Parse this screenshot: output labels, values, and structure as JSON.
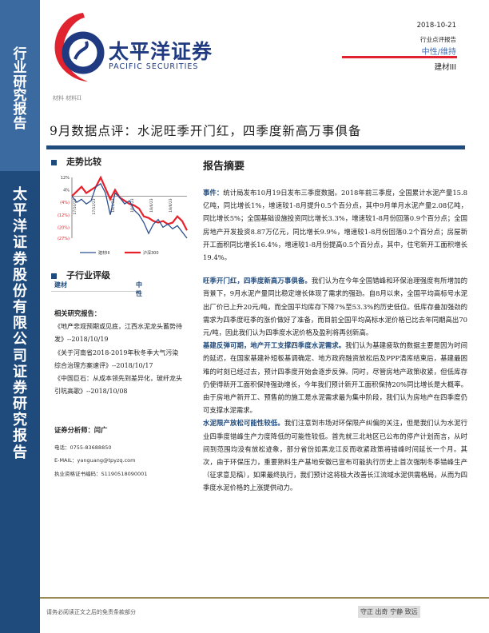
{
  "sidebar": {
    "top": "行业研究报告",
    "bottom": "太平洋证券股份有限公司证券研究报告"
  },
  "brand": {
    "cn": "太平洋证券",
    "en": "PACIFIC SECURITIES",
    "colors": {
      "red": "#e0232e",
      "blue": "#1f3a80"
    }
  },
  "header": {
    "date": "2018-10-21",
    "type": "行业点评报告",
    "rating": "中性/维持",
    "sector": "建材III",
    "category": "材料 材料II"
  },
  "title": "9月数据点评：水泥旺季开门红，四季度新高万事俱备",
  "trend": {
    "heading": "走势比较"
  },
  "chart_data": {
    "type": "line",
    "x": [
      "17/10/23",
      "17/11/6",
      "17/11/20",
      "17/12/4",
      "17/12/23",
      "18/1/8",
      "18/1/22",
      "18/2/5",
      "18/2/23",
      "18/3/9",
      "18/3/23",
      "18/4/9",
      "18/4/23",
      "18/5/7",
      "18/5/21",
      "18/6/4",
      "18/6/23",
      "18/7/9",
      "18/7/23",
      "18/8/6",
      "18/8/23",
      "18/9/7",
      "18/9/21",
      "18/10/8",
      "18/10/19"
    ],
    "xticks": [
      "17/10/23",
      "17/12/23",
      "18/2/23",
      "18/4/23",
      "18/6/23",
      "18/8/23"
    ],
    "yticks": [
      "12%",
      "4%",
      "(4%)",
      "(12%)",
      "(20%)",
      "(27%)"
    ],
    "ylim": [
      -27,
      12
    ],
    "series": [
      {
        "name": "建材III",
        "color": "#2b4f8f",
        "values": [
          0,
          -4,
          -2,
          -5,
          -3,
          6,
          8,
          2,
          -12,
          2,
          -1,
          -5,
          -3,
          -9,
          -12,
          -17,
          -24,
          -18,
          -15,
          -20,
          -18,
          -21,
          -19,
          -23,
          -27
        ]
      },
      {
        "name": "沪深300",
        "color": "#e8202a",
        "values": [
          0,
          3,
          6,
          2,
          4,
          6,
          12,
          5,
          -2,
          4,
          -1,
          -3,
          -5,
          -6,
          -8,
          -13,
          -14,
          -16,
          -17,
          -16,
          -18,
          -17,
          -13,
          -16,
          -22
        ]
      }
    ]
  },
  "sub_rating": {
    "heading": "子行业评级",
    "rows": [
      {
        "name": "建材",
        "rating": "中性"
      }
    ]
  },
  "related": {
    "heading": "相关研究报告：",
    "items": [
      "《地产悲观预期或见底，江西水泥龙头蓄势待发》--2018/10/19",
      "《关于河南省2018-2019年秋冬季大气污染综合治理方案速评》--2018/10/17",
      "《中国巨石：从成本领先到差异化，玻纤龙头引吭高歌》--2018/10/08"
    ]
  },
  "analyst": {
    "heading": "证券分析师：闫广",
    "phone": "电话：0755-83688850",
    "email": "E-MAIL：yanguang@tpyzq.com",
    "license": "执业资格证书编码：S1190518090001"
  },
  "summary": {
    "heading": "报告摘要",
    "paragraphs": [
      {
        "lead": "事件：",
        "text": "统计局发布10月19日发布三季度数据。2018年前三季度，全国累计水泥产量15.8亿吨，同比增长1%，增速较1-8月提升0.5个百分点，其中9月单月水泥产量2.08亿吨，同比增长5%；全国基础设施投资同比增长3.3%，增速较1-8月份回落0.9个百分点；全国房地产开发投资8.87万亿元，同比增长9.9%，增速较1-8月份回落0.2个百分点；房屋新开工面积同比增长16.4%，增速较1-8月份提高0.5个百分点，其中，住宅新开工面积增长19.4%。"
      },
      {
        "lead": "旺季开门红，四季度新高万事俱备。",
        "text": "我们认为在今年全国错峰和环保治理强度有所增加的背景下，9月水泥产量同比稳定增长体现了需求的强劲。自8月以来，全国平均高标号水泥出厂价已上升20元/吨，而全国平均库存下降7%至53.3%的历史低位。低库存叠加强劲的需求为四季度旺季的涨价做好了准备，而目前全国平均高标水泥价格已比去年同期高出70元/吨，因此我们认为四季度水泥价格及盈利将再创新高。"
      },
      {
        "lead": "基建反弹可期，地产开工支撑四季度水泥需求。",
        "text": "我们认为基建疲软的数据主要是因为时间的延迟，在国家基建补短板基调确定、地方政府融资放松后及PPP清库结束后，基建最困难的时刻已经过去，预计四季度开始会逐步反弹。同时，尽管房地产政策收紧，但低库存仍使得新开工面积保持强劲增长，今年我们预计新开工面积保持20%同比增长是大概率。由于房地产新开工、预售前的施工是水泥需求最为集中阶段，我们认为房地产在四季度仍可支撑水泥需求。"
      },
      {
        "lead": "水泥限产放松可能性较低。",
        "text": "我们注意到市场对环保限产纠偏的关注，但是我们认为水泥行业四季度错峰生产力度降低的可能性较低。首先就三北地区已公布的停产计划而言，从时间到范围均没有放松迹象，部分省份如黑龙江反而收紧政策将错峰时间延长一个月。其次，由于环保压力，重要熟料生产基地安徽已宣布可能执行历史上首次强制冬季错峰生产（征求意见稿），如果最终执行，我们预计这将极大改善长江流域水泥供需格局，从而为四季度水泥价格的上涨提供动力。"
      }
    ]
  },
  "footer": {
    "disclaimer": "请务必阅读正文之后的免责条款部分",
    "motto": "守正 出奇 宁静 致远"
  }
}
